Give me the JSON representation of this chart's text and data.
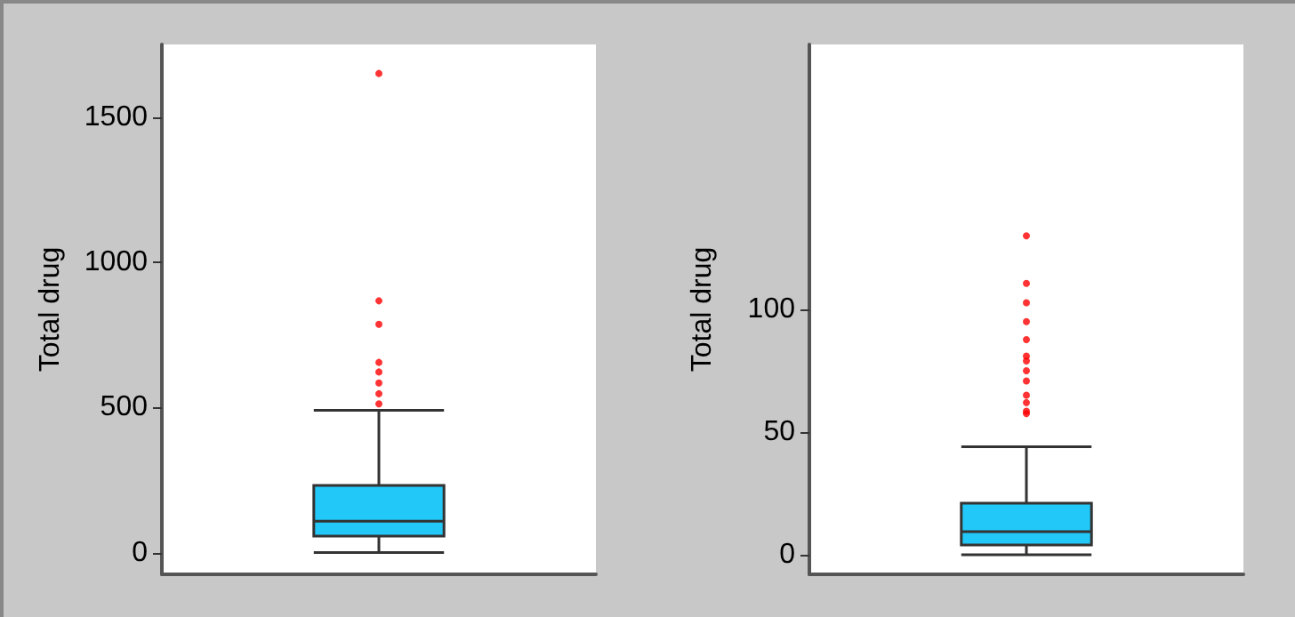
{
  "chart_data": [
    {
      "type": "box",
      "ylabel": "Total drug",
      "categories": [
        null
      ],
      "ylim": [
        -75,
        1750
      ],
      "yticks": [
        0,
        500,
        1000,
        1500
      ],
      "series": [
        {
          "color": "#22c8f8",
          "boxes": [
            {
              "low": 0,
              "q1": 57,
              "median": 108,
              "q3": 231,
              "high": 490,
              "outliers": [
                512,
                547,
                584,
                622,
                655,
                786,
                867,
                1650
              ]
            }
          ]
        }
      ]
    },
    {
      "type": "box",
      "ylabel": "Total drug",
      "categories": [
        null
      ],
      "ylim": [
        -8,
        208
      ],
      "yticks": [
        0,
        50,
        100
      ],
      "series": [
        {
          "color": "#22c8f8",
          "boxes": [
            {
              "low": 0,
              "q1": 4,
              "median": 9.4,
              "q3": 21,
              "high": 44,
              "outliers": [
                57.5,
                58.5,
                62,
                65,
                70.8,
                75,
                79,
                81,
                87.7,
                95,
                102.7,
                110.6,
                130
              ]
            }
          ]
        }
      ]
    }
  ]
}
